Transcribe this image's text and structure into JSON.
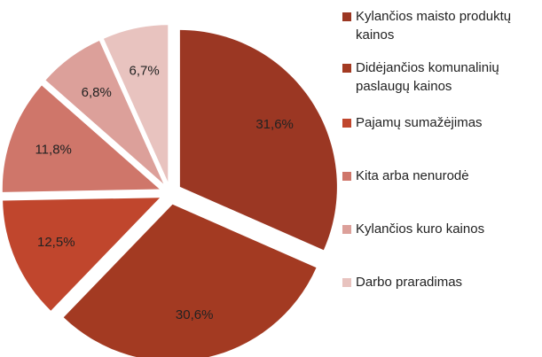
{
  "chart_data": {
    "type": "pie",
    "categories": [
      "Kylančios maisto produktų kainos",
      "Didėjančios komunalinių paslaugų kainos",
      "Pajamų sumažėjimas",
      "Kita arba nenurodė",
      "Kylančios kuro kainos",
      "Darbo praradimas"
    ],
    "values": [
      31.6,
      30.6,
      12.5,
      11.8,
      6.8,
      6.7
    ],
    "value_labels": [
      "31,6%",
      "30,6%",
      "12,5%",
      "11,8%",
      "6,8%",
      "6,7%"
    ],
    "colors": [
      "#9b3723",
      "#a33a22",
      "#c0462d",
      "#cf766a",
      "#dca09a",
      "#e8c3bf"
    ],
    "legend": "right"
  }
}
